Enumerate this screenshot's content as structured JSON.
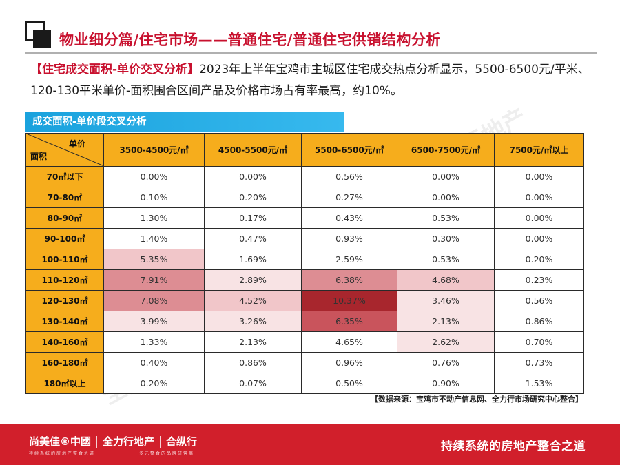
{
  "header": {
    "title": "物业细分篇/住宅市场——普通住宅/普通住宅供销结构分析"
  },
  "intro": {
    "tag": "【住宅成交面积-单价交叉分析】",
    "text": "2023年上半年宝鸡市主城区住宅成交热点分析显示，5500-6500元/平米、120-130平米单价-面积围合区间产品及价格市场占有率最高，约10%。"
  },
  "banner": {
    "label": "成交面积-单价段交叉分析"
  },
  "table": {
    "corner_top": "单价",
    "corner_bottom": "面积",
    "columns": [
      "3500-4500元/㎡",
      "4500-5500元/㎡",
      "5500-6500元/㎡",
      "6500-7500元/㎡",
      "7500元/㎡以上"
    ],
    "rows": [
      {
        "label": "70㎡以下",
        "values": [
          "0.00%",
          "0.00%",
          "0.56%",
          "0.00%",
          "0.00%"
        ]
      },
      {
        "label": "70-80㎡",
        "values": [
          "0.10%",
          "0.20%",
          "0.27%",
          "0.00%",
          "0.00%"
        ]
      },
      {
        "label": "80-90㎡",
        "values": [
          "1.30%",
          "0.17%",
          "0.43%",
          "0.53%",
          "0.00%"
        ]
      },
      {
        "label": "90-100㎡",
        "values": [
          "1.40%",
          "0.47%",
          "0.93%",
          "0.30%",
          "0.00%"
        ]
      },
      {
        "label": "100-110㎡",
        "values": [
          "5.35%",
          "1.69%",
          "2.59%",
          "0.53%",
          "0.20%"
        ]
      },
      {
        "label": "110-120㎡",
        "values": [
          "7.91%",
          "2.89%",
          "6.38%",
          "4.68%",
          "0.23%"
        ]
      },
      {
        "label": "120-130㎡",
        "values": [
          "7.08%",
          "4.52%",
          "10.37%",
          "3.46%",
          "0.56%"
        ]
      },
      {
        "label": "130-140㎡",
        "values": [
          "3.99%",
          "3.26%",
          "6.35%",
          "2.13%",
          "0.86%"
        ]
      },
      {
        "label": "140-160㎡",
        "values": [
          "1.33%",
          "2.13%",
          "4.65%",
          "2.62%",
          "0.70%"
        ]
      },
      {
        "label": "160-180㎡",
        "values": [
          "0.40%",
          "0.86%",
          "0.96%",
          "0.76%",
          "0.73%"
        ]
      },
      {
        "label": "180㎡以上",
        "values": [
          "0.20%",
          "0.07%",
          "0.50%",
          "0.90%",
          "1.53%"
        ]
      }
    ],
    "highlight_colors": {
      "darkest": "#a8262d",
      "dark": "#c9545c",
      "medium": "#dd8d93",
      "light": "#f1c6c9",
      "lightest": "#f8e3e4"
    },
    "highlights": [
      {
        "row": 4,
        "col": 0,
        "level": "light"
      },
      {
        "row": 5,
        "col": 0,
        "level": "medium"
      },
      {
        "row": 5,
        "col": 1,
        "level": "lightest"
      },
      {
        "row": 5,
        "col": 2,
        "level": "medium"
      },
      {
        "row": 5,
        "col": 3,
        "level": "light"
      },
      {
        "row": 6,
        "col": 0,
        "level": "medium"
      },
      {
        "row": 6,
        "col": 1,
        "level": "light"
      },
      {
        "row": 6,
        "col": 2,
        "level": "darkest"
      },
      {
        "row": 6,
        "col": 3,
        "level": "lightest"
      },
      {
        "row": 7,
        "col": 0,
        "level": "lightest"
      },
      {
        "row": 7,
        "col": 1,
        "level": "lightest"
      },
      {
        "row": 7,
        "col": 2,
        "level": "dark"
      },
      {
        "row": 7,
        "col": 3,
        "level": "lightest"
      },
      {
        "row": 8,
        "col": 3,
        "level": "lightest"
      }
    ]
  },
  "source": "【数据来源：宝鸡市不动产信息网、全力行市场研究中心整合】",
  "footer": {
    "logo_1": "尚美佳®中國",
    "logo_2": "全力行地产",
    "logo_3": "合纵行",
    "sub_1": "持续系统的房地产整合之道",
    "sub_2": "多元整合的品牌研营商",
    "slogan": "持续系统的房地产整合之道"
  },
  "watermark": {
    "text": "全力行地产"
  },
  "colors": {
    "brand_red": "#c8102e",
    "footer_red": "#d11f2b",
    "header_orange": "#f6ad1c",
    "banner_blue": "#1aa2dd"
  }
}
